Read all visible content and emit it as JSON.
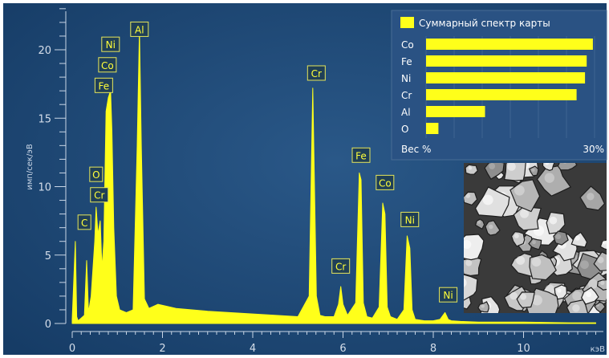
{
  "chart_data": [
    {
      "type": "line",
      "title": "",
      "xlabel": "кэВ",
      "ylabel": "имп/сек/эВ",
      "xlim": [
        0,
        11.6
      ],
      "ylim": [
        -0.5,
        23.5
      ],
      "xticks": [
        "0",
        "2",
        "4",
        "6",
        "8",
        "10"
      ],
      "yticks": [
        "0",
        "5",
        "10",
        "15",
        "20"
      ],
      "grid": false,
      "background_color": "#1e4775",
      "series": [
        {
          "color": "#ffff1a",
          "x": [
            0,
            0.07,
            0.1,
            0.13,
            0.2,
            0.27,
            0.32,
            0.36,
            0.42,
            0.5,
            0.53,
            0.57,
            0.62,
            0.66,
            0.7,
            0.75,
            0.8,
            0.85,
            0.88,
            0.92,
            0.98,
            1.05,
            1.2,
            1.35,
            1.44,
            1.49,
            1.53,
            1.6,
            1.7,
            1.9,
            2.3,
            3.0,
            4.0,
            5.0,
            5.25,
            5.33,
            5.41,
            5.49,
            5.6,
            5.8,
            5.9,
            5.95,
            6.0,
            6.1,
            6.28,
            6.36,
            6.4,
            6.45,
            6.53,
            6.65,
            6.8,
            6.88,
            6.93,
            6.98,
            7.05,
            7.2,
            7.35,
            7.42,
            7.48,
            7.53,
            7.6,
            7.8,
            8.0,
            8.15,
            8.26,
            8.33,
            8.4,
            8.6,
            9.0,
            10.0,
            11.0,
            11.6
          ],
          "values": [
            0.3,
            6.0,
            0.5,
            0.2,
            0.4,
            0.6,
            4.6,
            0.8,
            2.0,
            6.0,
            8.5,
            6.5,
            7.5,
            4.0,
            6.0,
            15.5,
            16.5,
            17.0,
            14.0,
            7.0,
            2.0,
            1.0,
            0.8,
            1.0,
            13.0,
            21.5,
            13.0,
            1.8,
            1.1,
            1.4,
            1.1,
            0.9,
            0.7,
            0.5,
            2.0,
            17.2,
            2.0,
            0.6,
            0.5,
            0.5,
            1.4,
            2.7,
            1.4,
            0.6,
            1.5,
            11.0,
            10.5,
            1.5,
            0.5,
            0.4,
            1.2,
            8.8,
            8.0,
            1.2,
            0.5,
            0.3,
            1.0,
            6.4,
            5.5,
            1.0,
            0.3,
            0.2,
            0.2,
            0.3,
            0.8,
            0.3,
            0.2,
            0.15,
            0.1,
            0.1,
            0.05,
            0.05
          ]
        }
      ],
      "annotations": [
        {
          "text": "Al",
          "x": 1.49,
          "y": 21.5
        },
        {
          "text": "Ni",
          "x": 0.85,
          "y": 20.4
        },
        {
          "text": "Co",
          "x": 0.78,
          "y": 18.9
        },
        {
          "text": "Fe",
          "x": 0.7,
          "y": 17.4
        },
        {
          "text": "O",
          "x": 0.53,
          "y": 10.9
        },
        {
          "text": "Cr",
          "x": 0.6,
          "y": 9.4
        },
        {
          "text": "C",
          "x": 0.27,
          "y": 7.4
        },
        {
          "text": "Cr",
          "x": 5.41,
          "y": 18.3
        },
        {
          "text": "Fe",
          "x": 6.4,
          "y": 12.3
        },
        {
          "text": "Co",
          "x": 6.93,
          "y": 10.3
        },
        {
          "text": "Ni",
          "x": 7.48,
          "y": 7.6
        },
        {
          "text": "Cr",
          "x": 5.95,
          "y": 4.2
        },
        {
          "text": "Ni",
          "x": 8.33,
          "y": 2.1
        }
      ]
    },
    {
      "type": "bar",
      "orientation": "horizontal",
      "title": "Суммарный спектр карты",
      "xlabel": "Вес %",
      "xlim": [
        0,
        30
      ],
      "xticks": [
        "30%"
      ],
      "legend_position": "top-left",
      "categories": [
        "Co",
        "Fe",
        "Ni",
        "Cr",
        "Al",
        "O"
      ],
      "values": [
        29.7,
        28.6,
        28.3,
        26.8,
        10.5,
        2.2
      ],
      "color": "#ffff1a",
      "background_color": "#2a5283"
    }
  ]
}
